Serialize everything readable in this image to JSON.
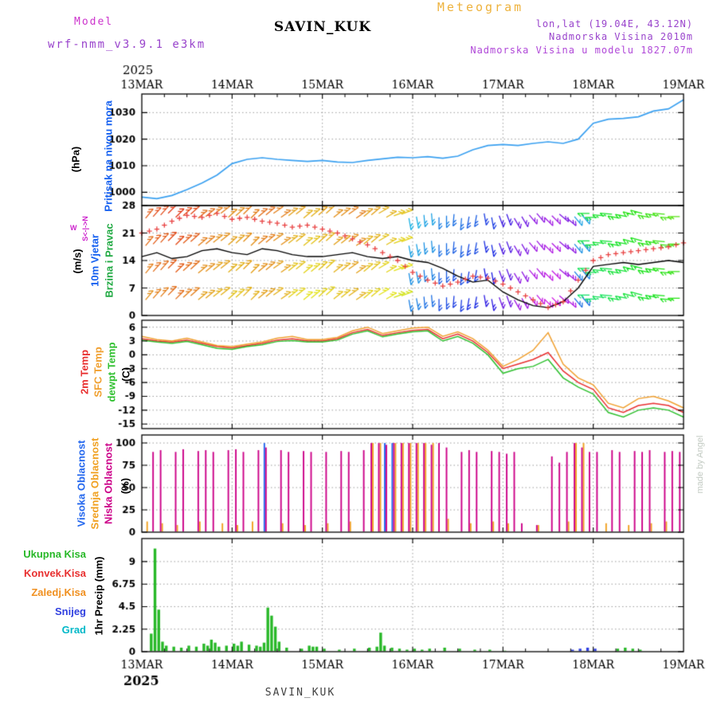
{
  "header": {
    "app_title": "Meteogram",
    "model_label": "Model",
    "model_name": "wrf-nmm_v3.9.1 e3km",
    "station": "SAVIN_KUK",
    "lonlat": "lon,lat (19.04E, 43.12N)",
    "elevation": "Nadmorska Visina 2010m",
    "model_elevation": "Nadmorska Visina u modelu 1827.07m"
  },
  "axis": {
    "year": "2025",
    "days": [
      "13MAR",
      "14MAR",
      "15MAR",
      "16MAR",
      "17MAR",
      "18MAR",
      "19MAR"
    ],
    "hours_total": 144
  },
  "panels": {
    "pressure": {
      "label": "Pritisak na nivou mora",
      "unit": "(hPa)"
    },
    "wind": {
      "label1": "10m Vjetar",
      "label2": "Brzina i Pravac",
      "unit": "(m/s)",
      "compass_axis": "S<-|->N",
      "compass_w": "W"
    },
    "temp": {
      "labels": [
        "2m Temp",
        "SFC Temp",
        "dewpt Temp"
      ],
      "unit": "(C)"
    },
    "cloud": {
      "labels": [
        "Visoka Oblacnost",
        "Srednja Oblacnost",
        "Niska Oblacnost"
      ],
      "unit": "(%)"
    },
    "precip": {
      "labels": [
        "Ukupna Kisa",
        "Konvek.Kisa",
        "Zaledj.Kisa",
        "Snijeg",
        "Grad"
      ],
      "unit": "1hr Precip (mm)"
    }
  },
  "footer": {
    "station": "SAVIN_KUK",
    "credit": "made by Angel"
  },
  "colors": {
    "title_orange": "#eeb23c",
    "magenta": "#cc33cc",
    "purple": "#9944cc",
    "purple2": "#b048d8",
    "pressure_line": "#3aa0f0",
    "pressure_label": "#1560f0",
    "wind_label1": "#1560f0",
    "wind_label2": "#22aa44",
    "compass": "#cc22cc",
    "speed_line": "#000000",
    "gust_plus": "#e84040",
    "temp_2m": "#e83030",
    "temp_sfc": "#f0a030",
    "temp_dew": "#30c030",
    "cloud_high": "#2266ee",
    "cloud_mid": "#f0a020",
    "cloud_low": "#cc0088",
    "rain_total": "#28b828",
    "rain_conv": "#e83030",
    "rain_frozen": "#f09020",
    "snow": "#3040e0",
    "hail": "#00b8c8",
    "grid": "#9a9a9a",
    "credit": "#c2cac2",
    "footer": "#404040"
  },
  "chart_data": [
    {
      "id": "sea-level-pressure",
      "type": "line",
      "ylabel": "(hPa)",
      "ylim": [
        995,
        1037
      ],
      "yticks": [
        1000,
        1010,
        1020,
        1030
      ],
      "x_step_hours": 4,
      "series": [
        {
          "name": "Pritisak na nivou mora",
          "color_key": "pressure_line",
          "values": [
            998.2,
            997.6,
            998.8,
            1001.0,
            1003.5,
            1006.5,
            1010.8,
            1012.4,
            1013.0,
            1012.4,
            1012.0,
            1011.6,
            1012.0,
            1011.4,
            1011.2,
            1012.0,
            1012.6,
            1013.2,
            1013.0,
            1013.4,
            1012.8,
            1013.6,
            1016.0,
            1017.6,
            1018.0,
            1017.6,
            1018.4,
            1019.0,
            1018.4,
            1020.0,
            1026.0,
            1027.5,
            1027.8,
            1028.4,
            1030.6,
            1031.4,
            1034.8
          ]
        }
      ]
    },
    {
      "id": "wind-10m",
      "type": "line+barbs",
      "ylabel": "(m/s)",
      "ylim": [
        0,
        28
      ],
      "yticks": [
        0,
        7,
        14,
        21,
        28
      ],
      "x_step_hours": 4,
      "barb_rows": [
        25.4,
        18.4,
        11.4,
        4.6
      ],
      "speed": [
        15,
        16,
        14.5,
        15,
        16.5,
        17,
        16,
        15.5,
        17,
        16.5,
        15.5,
        15,
        15,
        15.5,
        16,
        15,
        14.5,
        15,
        14,
        13.5,
        12,
        10,
        8.5,
        9,
        6,
        4,
        2.5,
        2,
        3.5,
        7,
        12.5,
        13,
        13.5,
        13,
        13.5,
        14,
        13.5
      ],
      "gust": [
        21,
        22,
        24,
        25.5,
        25,
        26,
        24.5,
        25,
        24,
        23.5,
        22.5,
        23,
        22,
        21,
        19.5,
        18,
        16,
        14,
        11,
        9,
        7.5,
        8.5,
        10,
        9.5,
        8,
        6,
        4,
        2,
        3.5,
        9,
        14,
        15.5,
        16,
        16.5,
        17,
        17.5,
        18.5
      ],
      "dir": [
        220,
        222,
        225,
        228,
        230,
        232,
        228,
        225,
        230,
        235,
        232,
        230,
        228,
        232,
        235,
        230,
        240,
        250,
        350,
        355,
        0,
        5,
        10,
        350,
        340,
        330,
        320,
        315,
        310,
        320,
        90,
        95,
        100,
        105,
        100,
        95,
        90
      ],
      "hue": [
        20,
        15,
        10,
        15,
        25,
        30,
        35,
        30,
        25,
        30,
        40,
        45,
        40,
        35,
        30,
        40,
        45,
        50,
        195,
        200,
        210,
        215,
        220,
        230,
        250,
        265,
        275,
        280,
        270,
        200,
        130,
        125,
        120,
        115,
        110,
        105,
        100
      ]
    },
    {
      "id": "temperature",
      "type": "line",
      "ylabel": "(C)",
      "ylim": [
        -16,
        7.5
      ],
      "yticks": [
        6,
        3,
        0,
        -3,
        -6,
        -9,
        -12,
        -15
      ],
      "x_step_hours": 4,
      "series": [
        {
          "name": "2m Temp",
          "color_key": "temp_2m",
          "values": [
            3.5,
            3.0,
            2.8,
            3.2,
            2.5,
            1.8,
            1.5,
            2.0,
            2.5,
            3.2,
            3.5,
            3.0,
            3.0,
            3.5,
            4.8,
            5.5,
            4.2,
            4.8,
            5.3,
            5.5,
            3.5,
            4.5,
            3.0,
            0.5,
            -3.0,
            -2.0,
            -1.0,
            0.5,
            -3.5,
            -6.0,
            -7.5,
            -11.5,
            -12.5,
            -11.0,
            -10.5,
            -11.0,
            -12.5
          ]
        },
        {
          "name": "SFC Temp",
          "color_key": "temp_sfc",
          "values": [
            4.0,
            3.3,
            3.0,
            3.6,
            2.8,
            2.0,
            1.8,
            2.3,
            2.8,
            3.6,
            4.0,
            3.3,
            3.3,
            3.8,
            5.2,
            6.0,
            4.6,
            5.2,
            5.8,
            6.0,
            4.0,
            5.0,
            3.5,
            1.0,
            -2.5,
            -1.0,
            1.0,
            4.8,
            -2.0,
            -5.0,
            -6.5,
            -10.5,
            -11.5,
            -9.5,
            -9.0,
            -10.0,
            -11.5
          ]
        },
        {
          "name": "dewpt Temp",
          "color_key": "temp_dew",
          "values": [
            3.2,
            2.8,
            2.5,
            2.9,
            2.2,
            1.4,
            1.2,
            1.8,
            2.2,
            2.9,
            3.1,
            2.8,
            2.8,
            3.2,
            4.5,
            5.2,
            3.9,
            4.5,
            5.0,
            5.2,
            3.0,
            4.0,
            2.5,
            0.0,
            -4.0,
            -3.0,
            -2.5,
            -1.0,
            -5.0,
            -7.0,
            -8.5,
            -12.5,
            -13.5,
            -12.0,
            -11.5,
            -12.0,
            -13.5
          ]
        }
      ]
    },
    {
      "id": "cloud-cover",
      "type": "bar",
      "ylabel": "(%)",
      "ylim": [
        0,
        109
      ],
      "yticks": [
        0,
        25,
        50,
        75,
        100
      ],
      "x_step_hours": 2,
      "series": [
        {
          "name": "Visoka Oblacnost",
          "color_key": "cloud_high",
          "values": [
            0,
            0,
            0,
            0,
            0,
            0,
            0,
            0,
            0,
            0,
            0,
            0,
            0,
            0,
            0,
            0,
            100,
            0,
            0,
            0,
            0,
            0,
            0,
            0,
            0,
            0,
            0,
            0,
            0,
            0,
            0,
            0,
            100,
            100,
            0,
            0,
            0,
            0,
            0,
            0,
            0,
            0,
            0,
            0,
            0,
            0,
            0,
            0,
            0,
            0,
            0,
            0,
            0,
            0,
            0,
            0,
            0,
            0,
            0,
            0,
            0,
            0,
            0,
            0,
            0,
            0,
            0,
            0,
            0,
            0,
            0,
            0
          ]
        },
        {
          "name": "Srednja Oblacnost",
          "color_key": "cloud_mid",
          "values": [
            12,
            0,
            10,
            0,
            8,
            0,
            0,
            12,
            0,
            0,
            10,
            0,
            8,
            0,
            12,
            0,
            0,
            0,
            10,
            0,
            0,
            8,
            0,
            0,
            10,
            0,
            0,
            12,
            0,
            0,
            100,
            100,
            0,
            100,
            100,
            100,
            100,
            100,
            100,
            0,
            15,
            0,
            0,
            10,
            0,
            0,
            12,
            0,
            10,
            0,
            0,
            0,
            8,
            0,
            0,
            0,
            12,
            100,
            100,
            0,
            0,
            10,
            0,
            0,
            8,
            0,
            0,
            10,
            0,
            12,
            0,
            0
          ]
        },
        {
          "name": "Niska Oblacnost",
          "color_key": "cloud_low",
          "values": [
            0,
            90,
            92,
            0,
            90,
            93,
            0,
            91,
            92,
            90,
            0,
            92,
            93,
            90,
            0,
            92,
            95,
            0,
            92,
            90,
            0,
            91,
            90,
            0,
            90,
            0,
            91,
            90,
            0,
            92,
            100,
            100,
            98,
            100,
            100,
            100,
            100,
            100,
            98,
            100,
            95,
            0,
            90,
            92,
            90,
            0,
            91,
            90,
            88,
            90,
            10,
            0,
            8,
            0,
            85,
            78,
            90,
            100,
            95,
            90,
            90,
            0,
            92,
            90,
            0,
            91,
            90,
            92,
            0,
            90,
            91,
            90
          ]
        }
      ]
    },
    {
      "id": "hourly-precip",
      "type": "bar",
      "ylabel": "1hr Precip (mm)",
      "ylim": [
        0,
        11.3
      ],
      "yticks": [
        0,
        2.25,
        4.5,
        6.75,
        9
      ],
      "bars": [
        [
          2,
          1.8,
          "r"
        ],
        [
          3,
          10.3,
          "r"
        ],
        [
          4,
          4.2,
          "r"
        ],
        [
          5,
          1.0,
          "r"
        ],
        [
          6,
          0.6,
          "r"
        ],
        [
          8,
          0.5,
          "r"
        ],
        [
          10,
          0.4,
          "r"
        ],
        [
          12,
          0.6,
          "r"
        ],
        [
          14,
          0.5,
          "r"
        ],
        [
          16,
          0.8,
          "r"
        ],
        [
          17,
          0.6,
          "r"
        ],
        [
          18,
          1.2,
          "r"
        ],
        [
          19,
          0.9,
          "r"
        ],
        [
          20,
          0.5,
          "r"
        ],
        [
          22,
          0.6,
          "r"
        ],
        [
          24,
          0.8,
          "r"
        ],
        [
          25,
          0.6,
          "r"
        ],
        [
          26,
          1.0,
          "r"
        ],
        [
          28,
          0.7,
          "r"
        ],
        [
          30,
          0.6,
          "r"
        ],
        [
          31,
          0.5,
          "r"
        ],
        [
          32,
          0.9,
          "r"
        ],
        [
          33,
          4.4,
          "r"
        ],
        [
          34,
          3.6,
          "r"
        ],
        [
          35,
          2.5,
          "r"
        ],
        [
          36,
          1.0,
          "r"
        ],
        [
          38,
          0.4,
          "r"
        ],
        [
          42,
          0.3,
          "r"
        ],
        [
          44,
          0.6,
          "r"
        ],
        [
          45,
          0.5,
          "r"
        ],
        [
          46,
          0.5,
          "r"
        ],
        [
          48,
          0.3,
          "r"
        ],
        [
          52,
          0.2,
          "r"
        ],
        [
          56,
          0.3,
          "r"
        ],
        [
          60,
          0.4,
          "r"
        ],
        [
          62,
          0.5,
          "r"
        ],
        [
          63,
          1.9,
          "r"
        ],
        [
          64,
          0.6,
          "r"
        ],
        [
          66,
          0.4,
          "r"
        ],
        [
          68,
          0.3,
          "r"
        ],
        [
          70,
          0.2,
          "r"
        ],
        [
          72,
          0.3,
          "r"
        ],
        [
          74,
          0.2,
          "r"
        ],
        [
          76,
          0.3,
          "r"
        ],
        [
          80,
          0.4,
          "r"
        ],
        [
          84,
          0.3,
          "r"
        ],
        [
          88,
          0.2,
          "r"
        ],
        [
          92,
          0.2,
          "r"
        ],
        [
          96,
          0.1,
          "r"
        ],
        [
          114,
          0.2,
          "s"
        ],
        [
          116,
          0.3,
          "s"
        ],
        [
          118,
          0.4,
          "s"
        ],
        [
          120,
          0.3,
          "s"
        ],
        [
          126,
          0.3,
          "r"
        ],
        [
          128,
          0.4,
          "r"
        ],
        [
          130,
          0.3,
          "r"
        ],
        [
          132,
          0.2,
          "r"
        ]
      ]
    }
  ]
}
